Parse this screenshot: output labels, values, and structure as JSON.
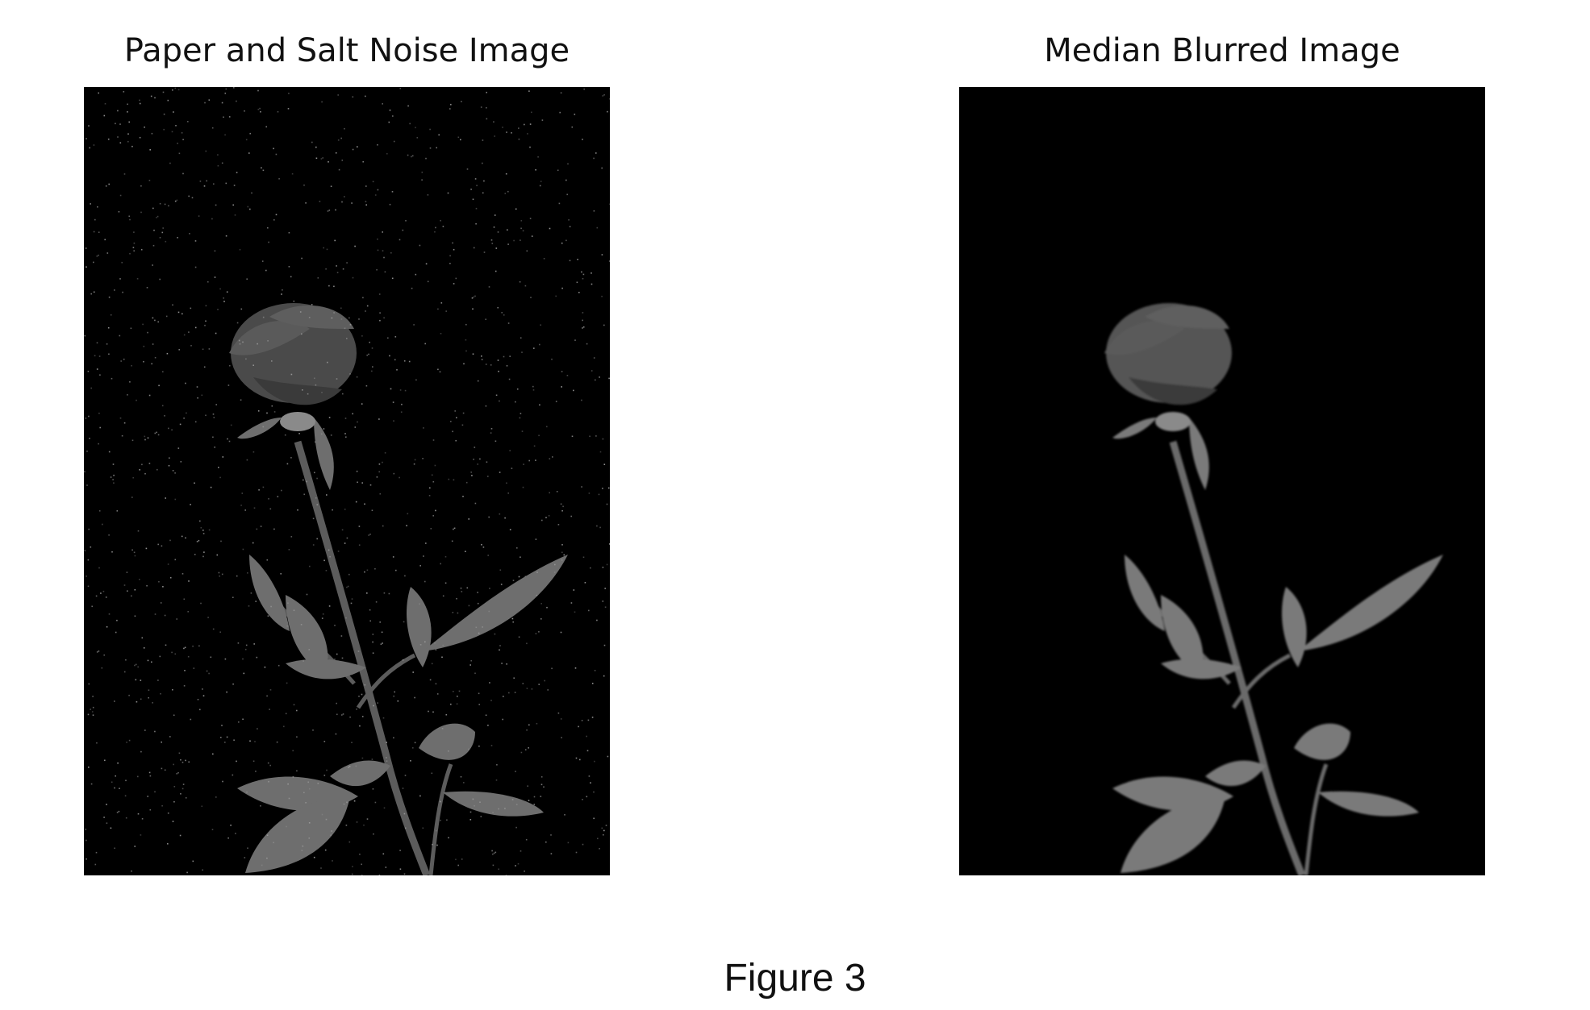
{
  "figure": {
    "caption": "Figure 3",
    "panels": [
      {
        "title": "Paper and Salt Noise Image",
        "image_subject": "rose-on-black-with-salt-and-pepper-noise"
      },
      {
        "title": "Median Blurred Image",
        "image_subject": "rose-on-black-median-filtered"
      }
    ]
  },
  "colors": {
    "background": "#ffffff",
    "image_background": "#000000",
    "rose_fill": "#4a4a4a",
    "leaf_fill": "#6e6e6e",
    "stem_fill": "#5c5c5c",
    "noise_dot": "#9a9a9a"
  }
}
